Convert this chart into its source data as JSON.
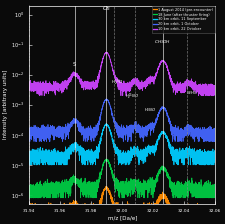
{
  "xlabel": "m/z [Da/e]",
  "ylabel": "Intensity [arbitrary units]",
  "xmin": 31.94,
  "xmax": 32.06,
  "ymin": 5e-07,
  "ymax": 2.0,
  "legend_entries": [
    "1 August 2014 (pre-encounter)",
    "18 June (after thruster firing)",
    "30 km orbit, 11 September",
    "20 km orbit, 1 October",
    "10 km orbit, 22 October"
  ],
  "line_colors": [
    "#ff8c00",
    "#00cc44",
    "#00ccff",
    "#4466ff",
    "#cc44ff"
  ],
  "vlines_solid": [
    31.9694,
    31.9898,
    32.0262
  ],
  "vlines_dashed": [
    31.995,
    32.008,
    32.042
  ],
  "background_color": "#0a0a0a",
  "peak_positions": [
    31.9694,
    31.9898,
    31.995,
    32.008,
    32.018,
    32.0262,
    32.043
  ],
  "peak_widths": [
    0.0025,
    0.0022,
    0.0018,
    0.0018,
    0.002,
    0.0025,
    0.0018
  ],
  "peak_heights": [
    0.12,
    1.0,
    0.05,
    0.04,
    0.06,
    0.5,
    0.04
  ],
  "base_scales": [
    3e-06,
    2e-05,
    0.00025,
    0.0015,
    0.05
  ],
  "noise_scales": [
    0.4,
    0.35,
    0.3,
    0.25,
    0.2
  ]
}
